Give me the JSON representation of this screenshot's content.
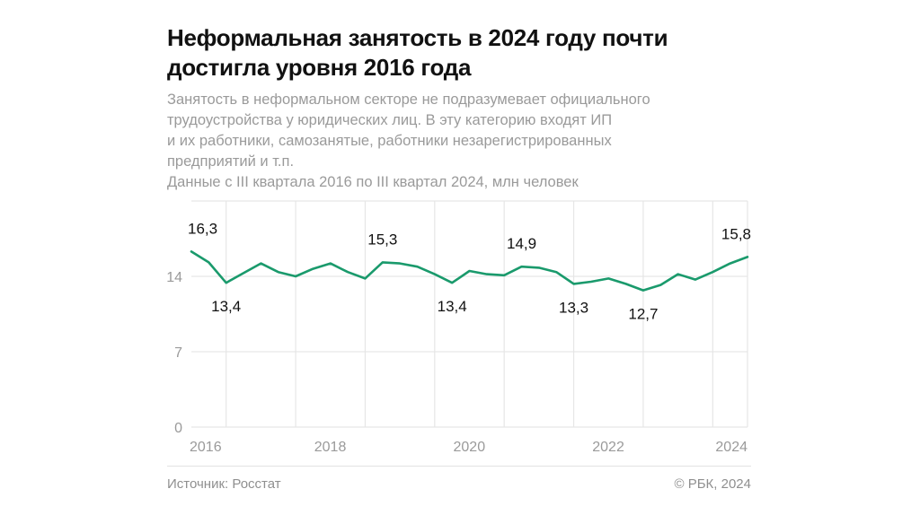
{
  "header": {
    "title_lines": [
      "Неформальная занятость в 2024 году почти",
      "достигла уровня 2016 года"
    ],
    "subtitle_lines": [
      "Занятость в неформальном секторе не подразумевает официального",
      "трудоустройства у юридических лиц. В эту категорию входят ИП",
      "и их работники, самозанятые, работники незарегистрированных",
      "предприятий и т.п.",
      "Данные с III квартала 2016 по III квартал 2024, млн человек"
    ]
  },
  "footer": {
    "source": "Источник: Росстат",
    "copyright": "© РБК, 2024"
  },
  "colors": {
    "line": "#1a9a6c",
    "grid": "#e6e6e6",
    "tick_text": "#9a9a9a",
    "label_text": "#111111"
  },
  "chart_data": {
    "type": "line",
    "title": "Неформальная занятость в 2024 году почти достигла уровня 2016 года",
    "xlabel": "",
    "ylabel": "млн человек",
    "ylim": [
      0,
      21
    ],
    "yticks": [
      0,
      7,
      14
    ],
    "xticks": [
      "2016",
      "2018",
      "2020",
      "2022",
      "2024"
    ],
    "grid": true,
    "x": [
      "III 2016",
      "IV 2016",
      "I 2017",
      "II 2017",
      "III 2017",
      "IV 2017",
      "I 2018",
      "II 2018",
      "III 2018",
      "IV 2018",
      "I 2019",
      "II 2019",
      "III 2019",
      "IV 2019",
      "I 2020",
      "II 2020",
      "III 2020",
      "IV 2020",
      "I 2021",
      "II 2021",
      "III 2021",
      "IV 2021",
      "I 2022",
      "II 2022",
      "III 2022",
      "IV 2022",
      "I 2023",
      "II 2023",
      "III 2023",
      "IV 2023",
      "I 2024",
      "II 2024",
      "III 2024"
    ],
    "series": [
      {
        "name": "Неформальная занятость, млн человек",
        "values": [
          16.3,
          15.3,
          13.4,
          14.3,
          15.2,
          14.4,
          14.0,
          14.7,
          15.2,
          14.4,
          13.8,
          15.3,
          15.2,
          14.9,
          14.2,
          13.4,
          14.5,
          14.2,
          14.1,
          14.9,
          14.8,
          14.4,
          13.3,
          13.5,
          13.8,
          13.3,
          12.7,
          13.2,
          14.2,
          13.7,
          14.4,
          15.2,
          15.8
        ]
      }
    ],
    "annotations": [
      {
        "index": 0,
        "text": "16,3",
        "position": "above"
      },
      {
        "index": 2,
        "text": "13,4",
        "position": "below"
      },
      {
        "index": 11,
        "text": "15,3",
        "position": "above"
      },
      {
        "index": 15,
        "text": "13,4",
        "position": "below"
      },
      {
        "index": 19,
        "text": "14,9",
        "position": "above"
      },
      {
        "index": 22,
        "text": "13,3",
        "position": "below"
      },
      {
        "index": 26,
        "text": "12,7",
        "position": "below"
      },
      {
        "index": 32,
        "text": "15,8",
        "position": "above"
      }
    ]
  }
}
